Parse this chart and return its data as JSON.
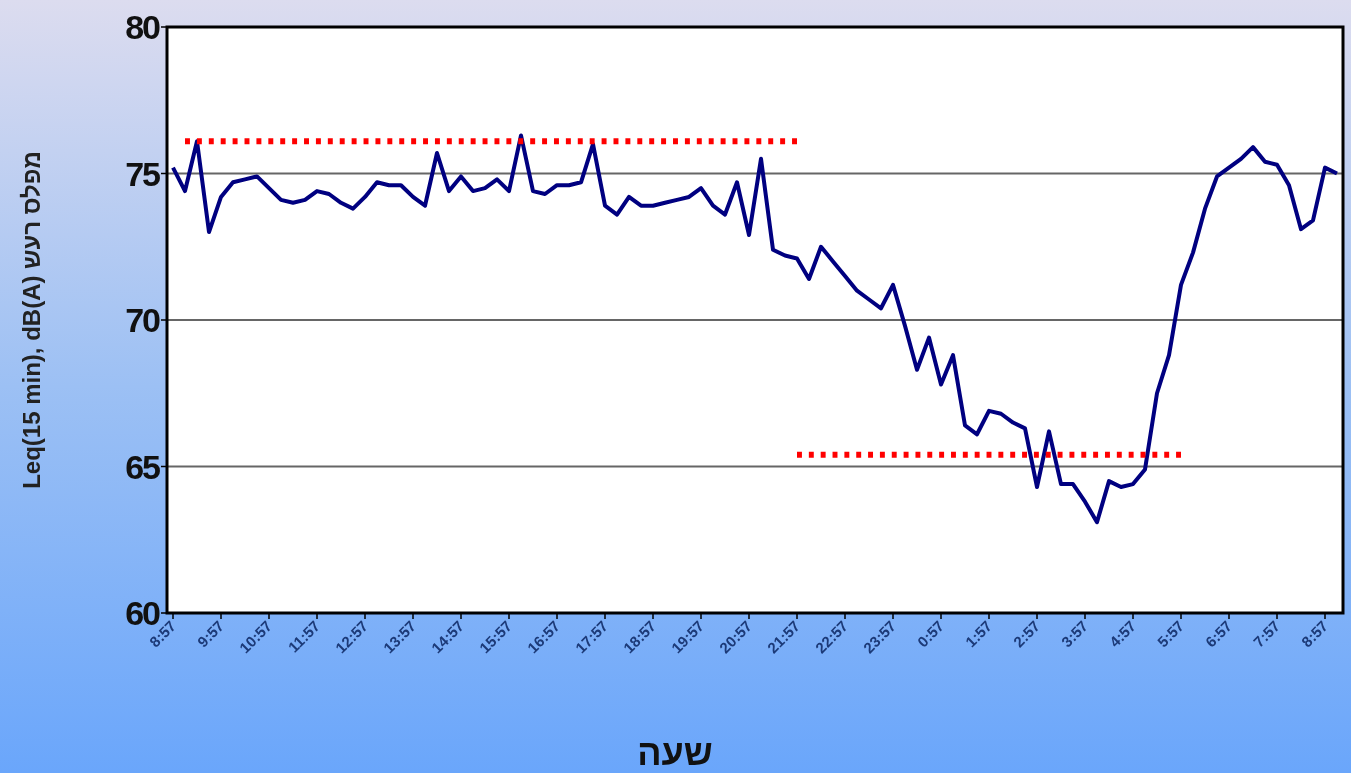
{
  "chart_data": {
    "type": "line",
    "xlabel": "שעה",
    "ylabel": "Leq(15 min), dB(A) מפלס רעש",
    "ylim": [
      60,
      80
    ],
    "yticks": [
      60,
      65,
      70,
      75,
      80
    ],
    "grid": "y",
    "categories": [
      "8:57",
      null,
      null,
      null,
      "9:57",
      null,
      null,
      null,
      "10:57",
      null,
      null,
      null,
      "11:57",
      null,
      null,
      null,
      "12:57",
      null,
      null,
      null,
      "13:57",
      null,
      null,
      null,
      "14:57",
      null,
      null,
      null,
      "15:57",
      null,
      null,
      null,
      "16:57",
      null,
      null,
      null,
      "17:57",
      null,
      null,
      null,
      "18:57",
      null,
      null,
      null,
      "19:57",
      null,
      null,
      null,
      "20:57",
      null,
      null,
      null,
      "21:57",
      null,
      null,
      null,
      "22:57",
      null,
      null,
      null,
      "23:57",
      null,
      null,
      null,
      "0:57",
      null,
      null,
      null,
      "1:57",
      null,
      null,
      null,
      "2:57",
      null,
      null,
      null,
      "3:57",
      null,
      null,
      null,
      "4:57",
      null,
      null,
      null,
      "5:57",
      null,
      null,
      null,
      "6:57",
      null,
      null,
      null,
      "7:57",
      null,
      null,
      null,
      "8:57",
      null
    ],
    "series": [
      {
        "color": "#000080",
        "line_style": "solid",
        "values": [
          75.2,
          74.4,
          76.1,
          73.0,
          74.2,
          74.7,
          74.8,
          74.9,
          74.5,
          74.1,
          74.0,
          74.1,
          74.4,
          74.3,
          74.0,
          73.8,
          74.2,
          74.7,
          74.6,
          74.6,
          74.2,
          73.9,
          75.7,
          74.4,
          74.9,
          74.4,
          74.5,
          74.8,
          74.4,
          76.3,
          74.4,
          74.3,
          74.6,
          74.6,
          74.7,
          76.0,
          73.9,
          73.6,
          74.2,
          73.9,
          73.9,
          74.0,
          74.1,
          74.2,
          74.5,
          73.9,
          73.6,
          74.7,
          72.9,
          75.5,
          72.4,
          72.2,
          72.1,
          71.4,
          72.5,
          72.0,
          71.5,
          71.0,
          70.7,
          70.4,
          71.2,
          69.8,
          68.3,
          69.4,
          67.8,
          68.8,
          66.4,
          66.1,
          66.9,
          66.8,
          66.5,
          66.3,
          64.3,
          66.2,
          64.4,
          64.4,
          63.8,
          63.1,
          64.5,
          64.3,
          64.4,
          64.9,
          67.5,
          68.8,
          71.2,
          72.3,
          73.8,
          74.9,
          75.2,
          75.5,
          75.9,
          75.4,
          75.3,
          74.6,
          73.1,
          73.4,
          75.2,
          75.0
        ]
      },
      {
        "color": "#ff0000",
        "line_style": "dotted",
        "values": [
          null,
          76.1,
          76.1,
          76.1,
          76.1,
          76.1,
          76.1,
          76.1,
          76.1,
          76.1,
          76.1,
          76.1,
          76.1,
          76.1,
          76.1,
          76.1,
          76.1,
          76.1,
          76.1,
          76.1,
          76.1,
          76.1,
          76.1,
          76.1,
          76.1,
          76.1,
          76.1,
          76.1,
          76.1,
          76.1,
          76.1,
          76.1,
          76.1,
          76.1,
          76.1,
          76.1,
          76.1,
          76.1,
          76.1,
          76.1,
          76.1,
          76.1,
          76.1,
          76.1,
          76.1,
          76.1,
          76.1,
          76.1,
          76.1,
          76.1,
          76.1,
          76.1,
          76.1,
          null,
          null,
          null,
          null,
          null,
          null,
          null,
          null,
          null,
          null,
          null,
          null,
          null,
          null,
          null,
          null,
          null,
          null,
          null,
          null,
          null,
          null,
          null,
          null,
          null,
          null,
          null,
          null,
          null,
          null,
          null,
          null,
          null,
          null,
          null,
          null,
          null,
          null,
          null,
          null,
          null,
          null,
          null,
          null,
          null
        ]
      },
      {
        "color": "#ff0000",
        "line_style": "dotted",
        "values": [
          null,
          null,
          null,
          null,
          null,
          null,
          null,
          null,
          null,
          null,
          null,
          null,
          null,
          null,
          null,
          null,
          null,
          null,
          null,
          null,
          null,
          null,
          null,
          null,
          null,
          null,
          null,
          null,
          null,
          null,
          null,
          null,
          null,
          null,
          null,
          null,
          null,
          null,
          null,
          null,
          null,
          null,
          null,
          null,
          null,
          null,
          null,
          null,
          null,
          null,
          null,
          null,
          65.4,
          65.4,
          65.4,
          65.4,
          65.4,
          65.4,
          65.4,
          65.4,
          65.4,
          65.4,
          65.4,
          65.4,
          65.4,
          65.4,
          65.4,
          65.4,
          65.4,
          65.4,
          65.4,
          65.4,
          65.4,
          65.4,
          65.4,
          65.4,
          65.4,
          65.4,
          65.4,
          65.4,
          65.4,
          65.4,
          65.4,
          65.4,
          65.4,
          null,
          null,
          null,
          null,
          null,
          null,
          null,
          null,
          null,
          null,
          null,
          null,
          null
        ]
      }
    ]
  }
}
